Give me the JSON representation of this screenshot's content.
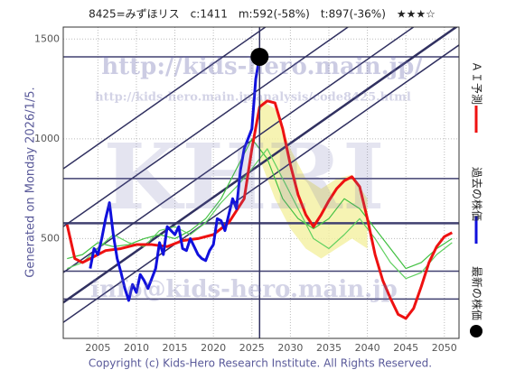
{
  "chart_data": {
    "type": "line",
    "title": "8425=みずほリス　c:1411　m:592(-58%)　t:897(-36%)　★★★☆",
    "side_note": "Generated on Monday 2026/1/5.",
    "footer": "Copyright (c) Kids-Hero Research Institute. All Rights Reserved.",
    "watermarks": [
      "http://kids-hero.main.jp/",
      "http://kids-hero.main.jp/analysis/code8425.html",
      "KHRI",
      "info@kids-hero.main.jp"
    ],
    "xlim": [
      2000.5,
      2051.9
    ],
    "ylim": [
      0,
      1560
    ],
    "xticks": [
      2005,
      2010,
      2015,
      2020,
      2025,
      2030,
      2035,
      2040,
      2045,
      2050
    ],
    "yticks": [
      500,
      1000,
      1500
    ],
    "grid": true,
    "band": {
      "color": "#f4f0a0",
      "x": [
        2026,
        2028,
        2030,
        2032,
        2034,
        2036,
        2038,
        2040
      ],
      "lower": [
        900,
        700,
        550,
        450,
        400,
        450,
        500,
        450
      ],
      "upper": [
        1200,
        1150,
        950,
        800,
        750,
        800,
        820,
        700
      ]
    },
    "levels": {
      "color": "#404070",
      "values": [
        1411,
        801,
        577,
        337,
        197
      ]
    },
    "trend_lines": {
      "color": "#303060",
      "x": [
        2000.5,
        2051.9
      ],
      "lines": [
        [
          80,
          1470
        ],
        [
          180,
          1570
        ],
        [
          330,
          1720
        ],
        [
          560,
          1950
        ],
        [
          850,
          2240
        ]
      ]
    },
    "series": [
      {
        "name": "ensemble-a",
        "color": "#40c040",
        "x": [
          2001,
          2003,
          2005,
          2007,
          2009,
          2011,
          2013,
          2015,
          2017,
          2019,
          2021,
          2023,
          2025,
          2027,
          2029,
          2031,
          2033,
          2035,
          2037,
          2039,
          2041,
          2043,
          2045,
          2047,
          2049,
          2051
        ],
        "values": [
          400,
          420,
          480,
          460,
          470,
          500,
          520,
          500,
          540,
          600,
          700,
          850,
          1000,
          900,
          700,
          600,
          550,
          600,
          700,
          650,
          550,
          450,
          350,
          380,
          450,
          500
        ]
      },
      {
        "name": "ensemble-b",
        "color": "#60d060",
        "x": [
          2001,
          2003,
          2005,
          2007,
          2009,
          2011,
          2013,
          2015,
          2017,
          2019,
          2021,
          2023,
          2025,
          2027,
          2029,
          2031,
          2033,
          2035,
          2037,
          2039,
          2041,
          2043,
          2045,
          2047,
          2049,
          2051
        ],
        "values": [
          350,
          380,
          450,
          520,
          480,
          460,
          540,
          560,
          520,
          580,
          680,
          760,
          850,
          950,
          800,
          650,
          500,
          450,
          520,
          600,
          500,
          380,
          300,
          330,
          420,
          480
        ]
      },
      {
        "name": "ＡＩ予測",
        "color": "#ee1111",
        "x": [
          2001,
          2002,
          2003,
          2004,
          2005,
          2006,
          2008,
          2010,
          2012,
          2014,
          2016,
          2018,
          2020,
          2022,
          2024,
          2025,
          2026,
          2027,
          2028,
          2029,
          2030,
          2031,
          2032,
          2033,
          2034,
          2035,
          2036,
          2037,
          2038,
          2039,
          2040,
          2041,
          2042,
          2043,
          2044,
          2045,
          2046,
          2047,
          2048,
          2049,
          2050,
          2051
        ],
        "values": [
          570,
          400,
          380,
          400,
          420,
          440,
          450,
          470,
          470,
          460,
          490,
          500,
          520,
          580,
          700,
          950,
          1160,
          1190,
          1180,
          1050,
          870,
          720,
          620,
          560,
          620,
          690,
          750,
          790,
          810,
          760,
          600,
          420,
          290,
          200,
          120,
          100,
          150,
          260,
          380,
          460,
          510,
          530
        ]
      },
      {
        "name": "過去の株価",
        "color": "#1010dd",
        "x": [
          2004,
          2004.5,
          2005,
          2005.5,
          2006,
          2006.5,
          2007,
          2007.5,
          2008,
          2008.5,
          2009,
          2009.5,
          2010,
          2010.5,
          2011,
          2011.5,
          2012,
          2012.5,
          2013,
          2013.5,
          2014,
          2014.5,
          2015,
          2015.5,
          2016,
          2016.5,
          2017,
          2017.5,
          2018,
          2018.5,
          2019,
          2019.5,
          2020,
          2020.5,
          2021,
          2021.5,
          2022,
          2022.5,
          2023,
          2023.5,
          2024,
          2024.5,
          2025,
          2025.5,
          2026
        ],
        "values": [
          350,
          450,
          420,
          500,
          600,
          680,
          520,
          400,
          330,
          250,
          190,
          270,
          230,
          320,
          290,
          250,
          300,
          350,
          480,
          420,
          560,
          540,
          520,
          560,
          450,
          440,
          500,
          460,
          420,
          400,
          390,
          440,
          470,
          600,
          590,
          540,
          620,
          700,
          650,
          840,
          950,
          1000,
          1050,
          1300,
          1411
        ]
      }
    ],
    "latest": {
      "name": "最新の株価",
      "color": "#000000",
      "x": 2026,
      "value": 1411
    }
  }
}
